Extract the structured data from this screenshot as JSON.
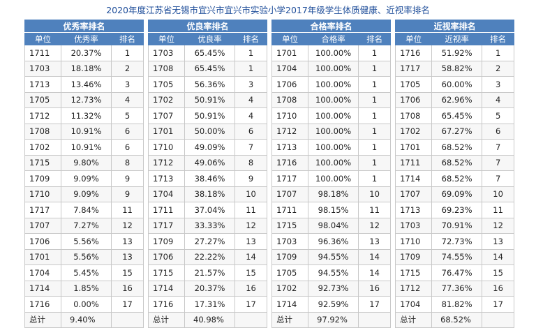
{
  "title": "2020年度江苏省无锡市宜兴市宜兴市实验小学2017年级学生体质健康、近视率排名",
  "headers": {
    "unit": "单位",
    "rank": "排名",
    "total": "总计"
  },
  "tables": [
    {
      "section": "优秀率排名",
      "metric": "优秀率",
      "rows": [
        [
          "1711",
          "20.37%",
          "1"
        ],
        [
          "1703",
          "18.18%",
          "2"
        ],
        [
          "1713",
          "13.46%",
          "3"
        ],
        [
          "1705",
          "12.73%",
          "4"
        ],
        [
          "1712",
          "11.32%",
          "5"
        ],
        [
          "1708",
          "10.91%",
          "6"
        ],
        [
          "1702",
          "10.91%",
          "6"
        ],
        [
          "1715",
          "9.80%",
          "8"
        ],
        [
          "1709",
          "9.09%",
          "9"
        ],
        [
          "1710",
          "9.09%",
          "9"
        ],
        [
          "1717",
          "7.84%",
          "11"
        ],
        [
          "1707",
          "7.27%",
          "12"
        ],
        [
          "1706",
          "5.56%",
          "13"
        ],
        [
          "1701",
          "5.56%",
          "13"
        ],
        [
          "1704",
          "5.45%",
          "15"
        ],
        [
          "1714",
          "1.85%",
          "16"
        ],
        [
          "1716",
          "0.00%",
          "17"
        ]
      ],
      "total": "9.40%"
    },
    {
      "section": "优良率排名",
      "metric": "优良率",
      "rows": [
        [
          "1703",
          "65.45%",
          "1"
        ],
        [
          "1708",
          "65.45%",
          "1"
        ],
        [
          "1705",
          "56.36%",
          "3"
        ],
        [
          "1702",
          "50.91%",
          "4"
        ],
        [
          "1707",
          "50.91%",
          "4"
        ],
        [
          "1701",
          "50.00%",
          "6"
        ],
        [
          "1710",
          "49.09%",
          "7"
        ],
        [
          "1712",
          "49.06%",
          "8"
        ],
        [
          "1713",
          "38.46%",
          "9"
        ],
        [
          "1704",
          "38.18%",
          "10"
        ],
        [
          "1711",
          "37.04%",
          "11"
        ],
        [
          "1717",
          "33.33%",
          "12"
        ],
        [
          "1709",
          "27.27%",
          "13"
        ],
        [
          "1706",
          "22.22%",
          "14"
        ],
        [
          "1715",
          "21.57%",
          "15"
        ],
        [
          "1714",
          "20.37%",
          "16"
        ],
        [
          "1716",
          "17.31%",
          "17"
        ]
      ],
      "total": "40.98%"
    },
    {
      "section": "合格率排名",
      "metric": "合格率",
      "rows": [
        [
          "1701",
          "100.00%",
          "1"
        ],
        [
          "1704",
          "100.00%",
          "1"
        ],
        [
          "1706",
          "100.00%",
          "1"
        ],
        [
          "1708",
          "100.00%",
          "1"
        ],
        [
          "1710",
          "100.00%",
          "1"
        ],
        [
          "1712",
          "100.00%",
          "1"
        ],
        [
          "1713",
          "100.00%",
          "1"
        ],
        [
          "1716",
          "100.00%",
          "1"
        ],
        [
          "1717",
          "100.00%",
          "1"
        ],
        [
          "1707",
          "98.18%",
          "10"
        ],
        [
          "1711",
          "98.15%",
          "11"
        ],
        [
          "1715",
          "98.04%",
          "12"
        ],
        [
          "1703",
          "96.36%",
          "13"
        ],
        [
          "1709",
          "94.55%",
          "14"
        ],
        [
          "1705",
          "94.55%",
          "14"
        ],
        [
          "1702",
          "92.73%",
          "16"
        ],
        [
          "1714",
          "92.59%",
          "17"
        ]
      ],
      "total": "97.92%"
    },
    {
      "section": "近视率排名",
      "metric": "近视率",
      "rows": [
        [
          "1716",
          "51.92%",
          "1"
        ],
        [
          "1717",
          "58.82%",
          "2"
        ],
        [
          "1705",
          "60.00%",
          "3"
        ],
        [
          "1706",
          "62.96%",
          "4"
        ],
        [
          "1708",
          "65.45%",
          "5"
        ],
        [
          "1702",
          "67.27%",
          "6"
        ],
        [
          "1701",
          "68.52%",
          "7"
        ],
        [
          "1711",
          "68.52%",
          "7"
        ],
        [
          "1714",
          "68.52%",
          "7"
        ],
        [
          "1707",
          "69.09%",
          "10"
        ],
        [
          "1713",
          "69.23%",
          "11"
        ],
        [
          "1703",
          "70.91%",
          "12"
        ],
        [
          "1710",
          "72.73%",
          "13"
        ],
        [
          "1709",
          "74.55%",
          "14"
        ],
        [
          "1715",
          "76.47%",
          "15"
        ],
        [
          "1712",
          "77.36%",
          "16"
        ],
        [
          "1704",
          "81.82%",
          "17"
        ]
      ],
      "total": "68.52%"
    }
  ]
}
